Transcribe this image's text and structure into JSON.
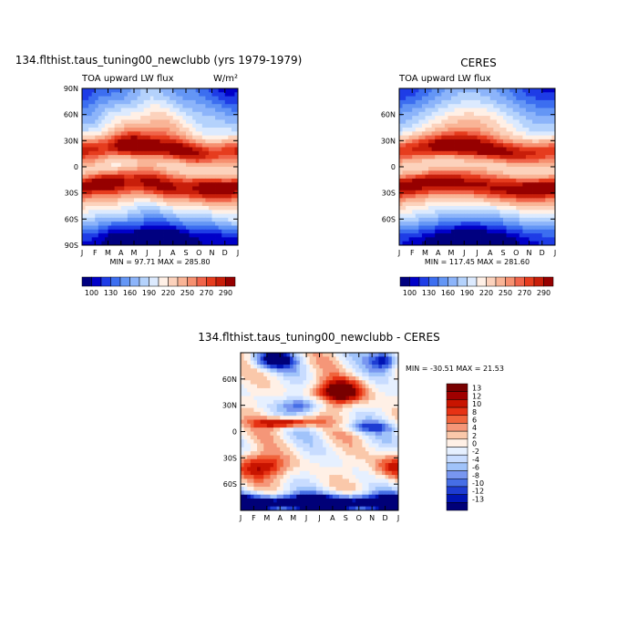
{
  "figure": {
    "panel_model_title": "134.flthist.taus_tuning00_newclubb (yrs 1979-1979)",
    "panel_obs_title": "CERES",
    "panel_diff_title": "134.flthist.taus_tuning00_newclubb - CERES"
  },
  "chart_data": [
    {
      "type": "heatmap",
      "title": "134.flthist.taus_tuning00_newclubb (yrs 1979-1979)",
      "subtitle_left": "TOA upward LW flux",
      "subtitle_right": "W/m²",
      "x_tick_labels": [
        "J",
        "F",
        "M",
        "A",
        "M",
        "J",
        "J",
        "A",
        "S",
        "O",
        "N",
        "D",
        "J"
      ],
      "y_tick_labels": [
        "90N",
        "60N",
        "30N",
        "0",
        "30S",
        "60S",
        "90S"
      ],
      "y_ticks_deg": [
        90,
        60,
        30,
        0,
        -30,
        -60,
        -90
      ],
      "ylim": [
        -90,
        90
      ],
      "stats": "MIN = 97.71 MAX = 285.80",
      "min": 97.71,
      "max": 285.8,
      "colorbar_labels": [
        "100",
        "130",
        "160",
        "190",
        "220",
        "250",
        "270",
        "290"
      ],
      "colorbar_levels": [
        100,
        115,
        130,
        145,
        160,
        175,
        190,
        205,
        220,
        235,
        250,
        260,
        270,
        280,
        290
      ],
      "colors": [
        "#000080",
        "#0000c8",
        "#1e3ce6",
        "#3c6ef0",
        "#6496f5",
        "#8cb4fa",
        "#b4d2fc",
        "#dceafe",
        "#fff0e6",
        "#fcd2bc",
        "#f9b496",
        "#f69070",
        "#f0644a",
        "#e63c1e",
        "#c81e0a",
        "#960000"
      ],
      "source_kind": "model"
    },
    {
      "type": "heatmap",
      "title": "CERES",
      "subtitle_left": "TOA upward LW flux",
      "x_tick_labels": [
        "J",
        "F",
        "M",
        "A",
        "M",
        "J",
        "J",
        "A",
        "S",
        "O",
        "N",
        "D",
        "J"
      ],
      "y_tick_labels": [
        "60N",
        "30N",
        "0",
        "30S",
        "60S"
      ],
      "y_ticks_deg": [
        60,
        30,
        0,
        -30,
        -60
      ],
      "ylim": [
        -90,
        90
      ],
      "stats": "MIN = 117.45 MAX = 281.60",
      "min": 117.45,
      "max": 281.6,
      "colorbar_labels": [
        "100",
        "130",
        "160",
        "190",
        "220",
        "250",
        "270",
        "290"
      ],
      "colorbar_levels": [
        100,
        115,
        130,
        145,
        160,
        175,
        190,
        205,
        220,
        235,
        250,
        260,
        270,
        280,
        290
      ],
      "colors": [
        "#000080",
        "#0000c8",
        "#1e3ce6",
        "#3c6ef0",
        "#6496f5",
        "#8cb4fa",
        "#b4d2fc",
        "#dceafe",
        "#fff0e6",
        "#fcd2bc",
        "#f9b496",
        "#f69070",
        "#f0644a",
        "#e63c1e",
        "#c81e0a",
        "#960000"
      ],
      "source_kind": "obs"
    },
    {
      "type": "heatmap",
      "title": "134.flthist.taus_tuning00_newclubb - CERES",
      "x_tick_labels": [
        "J",
        "F",
        "M",
        "A",
        "M",
        "J",
        "J",
        "A",
        "S",
        "O",
        "N",
        "D",
        "J"
      ],
      "y_tick_labels": [
        "60N",
        "30N",
        "0",
        "30S",
        "60S"
      ],
      "y_ticks_deg": [
        60,
        30,
        0,
        -30,
        -60
      ],
      "ylim": [
        -90,
        90
      ],
      "stats": "MIN = -30.51 MAX = 21.53",
      "min": -30.51,
      "max": 21.53,
      "colorbar_labels": [
        "13",
        "12",
        "10",
        "8",
        "6",
        "4",
        "2",
        "0",
        "-2",
        "-4",
        "-6",
        "-8",
        "-10",
        "-12",
        "-13"
      ],
      "colorbar_levels": [
        13,
        12,
        10,
        8,
        6,
        4,
        2,
        0,
        -2,
        -4,
        -6,
        -8,
        -10,
        -12,
        -13
      ],
      "colors": [
        "#780000",
        "#a00000",
        "#c81400",
        "#e63214",
        "#f0643c",
        "#f59678",
        "#fac8aa",
        "#fff0e6",
        "#e6f0ff",
        "#c8dcff",
        "#a0c3fa",
        "#7896f0",
        "#466ee6",
        "#1e3cd2",
        "#0014b4",
        "#000078"
      ],
      "source_kind": "diff"
    }
  ]
}
